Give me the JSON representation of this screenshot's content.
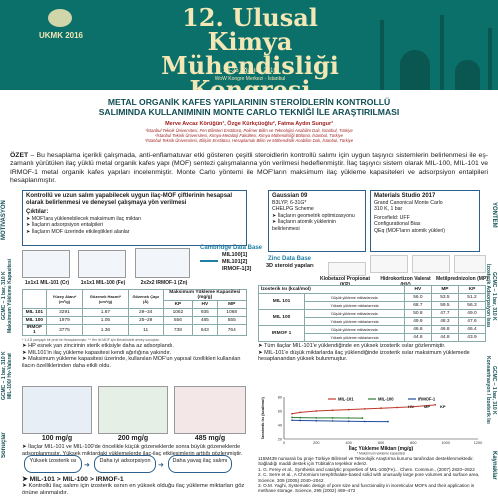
{
  "banner": {
    "congress_line1": "12. Ulusal",
    "congress_line2": "Kimya Mühendisliği",
    "congress_line3": "Kongresi",
    "dates": "23-26 Ağustos 2016",
    "venue": "WoW Kongre Merkezi - İstanbul",
    "logo_text": "UKMK 2016"
  },
  "title": {
    "line1": "METAL ORGANİK KAFES YAPILARININ STEROİDLERİN KONTROLLÜ",
    "line2": "SALIMINDA KULLANIMININ MONTE CARLO TEKNİĞİ İLE ARAŞTIRILMASI"
  },
  "authors": "Merve Avcaz Körüğün¹, Özge Kürkçüoğlu², Fatma Aydın Sungur³",
  "affiliations": [
    "¹İstanbul Teknik Üniversitesi, Fen Bilimleri Enstitüsü, Polimer Bilim ve Teknolojisi Anabilim Dalı, İstanbul, Türkiye",
    "²İstanbul Teknik Üniversitesi, Kimya-Metalürji Fakültesi, Kimya Mühendisliği Bölümü, İstanbul, Türkiye",
    "³İstanbul Teknik Üniversitesi, Bilişim Enstitüsü, Hesaplamalı Bilim ve Mühendislik Anabilim Dalı, İstanbul, Türkiye"
  ],
  "ozet": {
    "label": "ÖZET",
    "text": " – Bu hesaplama içerikli çalışmada, anti-enflamatuvar etki gösteren çeşitli steroidlerin kontrollü salımı için uygun taşıyıcı sistemlerin belirlenmesi ile eş-zamanlı yürütülen ilaç yüklü metal organik kafes yapı (MOF) sentezi çalışmalarına yön verilmesi hedeflenmiştir. İlaç taşıyıcı sistem olarak MIL-100, MIL-101 ve IRMOF-1 metal organik kafes yapıları incelenmiştir. Monte Carlo yöntemi ile MOF'ların maksimum ilaç yükleme kapasiteleri ve adsorpsiyon entalpileri hesaplanmıştır."
  },
  "side_labels": {
    "motivasyon": "MOTİVASYON",
    "yontem": "YÖNTEM",
    "max_yukleme": "GCMC – 1 bar, 310 K\nMaksimum Yükleme Kapasitesi",
    "izosterik": "GCMC – 1 bar, 310 K\nİzosterik Adsorpsiyon Isısı",
    "mil_vs_valerat": "GCMC – 1 bar, 310 K\nMIL-100/ Hv-Valerat",
    "konsantrasyon": "GCMC – 1 bar, 310 K\nKonsantrasyon / İzosterik Isı",
    "sonuclar": "Sonuçlar",
    "kaynaklar": "Kaynaklar"
  },
  "motivation": {
    "heading": "Kontrollü ve uzun salım yapabilecek uygun ilaç-MOF çiftlerinin hesapsal olarak belirlenmesi ve deneysel çalışmaya yön verilmesi",
    "outputs_label": "Çıktılar:",
    "outputs": [
      "MOF'lara yüklenebilecek maksimum ilaç miktarı",
      "İlaçların adsorpsiyon entalpileri",
      "İlaçların MOF üzerinde etkileştikleri alanlar"
    ]
  },
  "method": {
    "gaussian_title": "Gaussian 09",
    "gaussian_lines": [
      "B3LYP, 6-31G*",
      "CHELPG Scheme"
    ],
    "gaussian_bullets": [
      "İlaçların geometrik optimizasyonu",
      "İlaçların atomik yüklerinin belirlenmesi"
    ],
    "ms_title": "Materials Studio 2017",
    "ms_lines": [
      "Grand Canonical Monte Carlo",
      "310 K, 1 bar",
      "Forcefield: UFF",
      "Configurational Bias",
      "QEq (MOF'ların atomik yükleri)"
    ],
    "cambridge": "Cambridge Data Base",
    "mof_list": [
      "MIL100[1]",
      "MIL101[2]",
      "IRMOF-1[3]"
    ],
    "zinc": "Zinc Data Base",
    "zinc_sub": "3D steroid yapıları",
    "drugs": [
      "Klobetazol Propionat (KP)",
      "Hidrokortizon Valerat (HV)",
      "Metilprednizolon (MP)"
    ]
  },
  "mofs": [
    {
      "size": "1x1x1 MIL-101 (Cr)"
    },
    {
      "size": "1x1x1 MIL-100 (Fe)"
    },
    {
      "size": "2x2x2 IRMOF-1 (Zn)"
    }
  ],
  "capacity_table": {
    "headers": [
      "",
      "Yüzey Alanı* (m²/g)",
      "Gözenek Hacmi* (cm³/g)",
      "Gözenek Çapı (Å)",
      "KP",
      "HV",
      "MP"
    ],
    "group_header": "Maksimum Yükleme Kapasitesi (mg/g)",
    "rows": [
      [
        "MIL 101",
        "3291",
        "1.87",
        "29–34",
        "1062",
        "935",
        "1068"
      ],
      [
        "MIL 100",
        "1979",
        "1.05",
        "25–29",
        "556",
        "485",
        "555"
      ],
      [
        "IRMOF 1",
        "3775",
        "1.36",
        "11",
        "738",
        "643",
        "764"
      ]
    ],
    "footnote": "* 1.4 Å yarıçaplı bir prob ile Hesaplanmıştır. ** Her iki MOF için literatürdeki deney sonuçları."
  },
  "capacity_bullets": [
    "HP esnek yan zincirinin sterik etkisiyle daha az adsorplandı.",
    "MIL101'in ilaç yükleme kapasitesi kendi ağırlığına yakındır.",
    "Maksimum yükleme kapasitesi üzerinde, kullanılan MOF'un yapısal özellikleri kullanılan ilacın özelliklerinden daha etkili oldu."
  ],
  "loading_images": [
    "100 mg/g",
    "200 mg/g",
    "485 mg/g"
  ],
  "loading_bullets": [
    "İlaçlar MIL-101 ve MIL-100'de öncelikle küçük gözeneklerde sonra büyük gözeneklerde adsorplanmıştır. Yüksek miktardaki yüklemelerde ilaç-ilaç etkileşimlerin arttığı gözlenmiştir."
  ],
  "heat_table": {
    "title": "İzosterik Isı (kcal/mol)",
    "headers": [
      "",
      "HV",
      "MP",
      "KP"
    ],
    "rows": [
      {
        "mof": "MIL 101",
        "sub": "Düşük yükleme miktarlarında",
        "vals": [
          "56.0",
          "53.5",
          "51.2"
        ]
      },
      {
        "mof": "",
        "sub": "Yüksek yükleme miktarlarında",
        "vals": [
          "68.7",
          "59.5",
          "56.3"
        ]
      },
      {
        "mof": "MIL 100",
        "sub": "Düşük yükleme miktarlarında",
        "vals": [
          "50.8",
          "47.7",
          "49.0"
        ]
      },
      {
        "mof": "",
        "sub": "Yüksek yükleme miktarlarında",
        "vals": [
          "49.9",
          "48.3",
          "47.6"
        ]
      },
      {
        "mof": "IRMOF 1",
        "sub": "Düşük yükleme miktarlarında",
        "vals": [
          "46.8",
          "46.8",
          "46.4"
        ]
      },
      {
        "mof": "",
        "sub": "Yüksek yükleme miktarlarında",
        "vals": [
          "44.8",
          "44.8",
          "43.9"
        ]
      }
    ]
  },
  "heat_bullets": [
    "Tüm ilaçlar MIL-101'e yüklendiğinde en yüksek izosterik ısılar gözlenmiştir.",
    "MIL-101'e düşük miktarlarda ilaç yüklendiğinde izosterik ısılar maksimum yüklemede hesaplanandan yüksek bulunmuştur."
  ],
  "chart_data": {
    "type": "line",
    "title": "",
    "xlabel": "İlaç Yükleme Miktarı (mg/g)",
    "ylabel": "İzosterik Isı (kcal/mol)",
    "x_sub_label": "* Maksimum yükleme kapasitesi",
    "xlim": [
      0,
      1200
    ],
    "ylim": [
      20,
      80
    ],
    "x_ticks": [
      0,
      200,
      400,
      600,
      800,
      1000,
      1200
    ],
    "y_ticks": [
      20,
      40,
      60,
      80
    ],
    "legend_labels": [
      "HV",
      "MP",
      "KP"
    ],
    "series": [
      {
        "name": "MIL-101",
        "color": "#c0392b",
        "x": [
          50,
          100,
          200,
          300,
          400,
          500,
          600,
          700,
          800,
          935
        ],
        "y": [
          56,
          58,
          60,
          61,
          62,
          63,
          64,
          65,
          66,
          68.7
        ]
      },
      {
        "name": "MIL-100",
        "color": "#2e7d32",
        "x": [
          50,
          100,
          200,
          300,
          400,
          485
        ],
        "y": [
          50.8,
          50.5,
          50.2,
          50.1,
          50.0,
          49.9
        ]
      },
      {
        "name": "IRMOF-1",
        "color": "#1f4e9e",
        "x": [
          50,
          100,
          200,
          300,
          400,
          500,
          643
        ],
        "y": [
          46.8,
          46.5,
          46.0,
          45.7,
          45.3,
          45.0,
          44.8
        ]
      }
    ]
  },
  "conclusions": {
    "boxes": [
      "Yüksek izosterik ısı",
      "Daha iyi adsorpsiyon",
      "Daha yavaş ilaç salımı"
    ],
    "order": "MIL-101 > MIL-100 > IRMOF-1",
    "final": "Kontrollü ilaç salımı için izosterik ısının en yüksek olduğu ilaç yükleme miktarları göz önüne alınmalıdır."
  },
  "references": [
    "115M439 numaralı bu proje Türkiye Bilimsel ve Teknolojik Araştırma kurumu tarafından desteklenmektedir. Sağladığı maddi destek için Tübitak'a teşekkür ederiz.",
    "1. G. Ferey et al., Synthesis and catalytic properties of MIL-100(Fe)... Chem. Commun., (2007) 2820–2822",
    "2. C. Serre et al., A Chromium terephthalate-based solid with unusually large pore volumes and surface area, Science, 309 (2005) 2040–2042",
    "3. O.M. Yaghi, Systematic design of pore size and functionality in isoreticular MOFs and their application in methane storage. Science, 295 (2002) 469–472"
  ]
}
